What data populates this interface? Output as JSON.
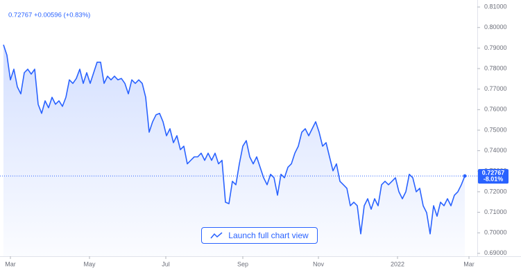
{
  "chart_data": {
    "type": "area",
    "header": "0.72767 +0.00596 (+0.83%)",
    "last_price_label": "0.72767",
    "change_label": "-8.01%",
    "button_label": "Launch full chart view",
    "color": "#2962ff",
    "values": [
      0.7916,
      0.7865,
      0.7745,
      0.7797,
      0.7711,
      0.7677,
      0.778,
      0.7797,
      0.7773,
      0.7797,
      0.7626,
      0.7582,
      0.7643,
      0.7609,
      0.766,
      0.7626,
      0.7643,
      0.7616,
      0.766,
      0.7745,
      0.7728,
      0.7752,
      0.7797,
      0.7728,
      0.778,
      0.7728,
      0.778,
      0.7831,
      0.7831,
      0.7728,
      0.7763,
      0.7745,
      0.7763,
      0.7745,
      0.7752,
      0.7728,
      0.7677,
      0.7745,
      0.7728,
      0.7745,
      0.7728,
      0.766,
      0.749,
      0.7541,
      0.7575,
      0.7582,
      0.7541,
      0.7473,
      0.7507,
      0.7439,
      0.7473,
      0.7405,
      0.7422,
      0.7336,
      0.7353,
      0.737,
      0.737,
      0.7388,
      0.7353,
      0.7388,
      0.7353,
      0.7388,
      0.7336,
      0.7353,
      0.7149,
      0.7142,
      0.7251,
      0.7234,
      0.7336,
      0.7422,
      0.7449,
      0.737,
      0.7336,
      0.737,
      0.7319,
      0.7268,
      0.7234,
      0.7285,
      0.7268,
      0.7183,
      0.7285,
      0.7268,
      0.7319,
      0.7336,
      0.7388,
      0.7422,
      0.749,
      0.7507,
      0.7473,
      0.7507,
      0.7541,
      0.749,
      0.7422,
      0.7439,
      0.737,
      0.7302,
      0.7336,
      0.7251,
      0.7234,
      0.7217,
      0.7132,
      0.7149,
      0.7132,
      0.6995,
      0.7132,
      0.7166,
      0.7115,
      0.7166,
      0.7132,
      0.7234,
      0.7251,
      0.7234,
      0.7251,
      0.7268,
      0.72,
      0.7166,
      0.72,
      0.7285,
      0.7268,
      0.72,
      0.7217,
      0.7132,
      0.7098,
      0.6995,
      0.7132,
      0.7081,
      0.7149,
      0.7132,
      0.7166,
      0.7132,
      0.7183,
      0.72,
      0.7234,
      0.72767
    ],
    "xlim": [
      -1,
      136.6
    ],
    "xticks": [
      {
        "value": 2,
        "label": "Mar"
      },
      {
        "value": 24.8,
        "label": "May"
      },
      {
        "value": 46.8,
        "label": "Jul"
      },
      {
        "value": 69,
        "label": "Sep"
      },
      {
        "value": 90.8,
        "label": "Nov"
      },
      {
        "value": 113.6,
        "label": "2022"
      },
      {
        "value": 134.2,
        "label": "Mar"
      }
    ],
    "ylim": [
      0.6886,
      0.8134
    ],
    "yticks": [
      {
        "value": 0.69,
        "label": "0.69000"
      },
      {
        "value": 0.7,
        "label": "0.70000"
      },
      {
        "value": 0.71,
        "label": "0.71000"
      },
      {
        "value": 0.72,
        "label": "0.72000"
      },
      {
        "value": 0.73,
        "label": "0.73000"
      },
      {
        "value": 0.74,
        "label": "0.74000"
      },
      {
        "value": 0.75,
        "label": "0.75000"
      },
      {
        "value": 0.76,
        "label": "0.76000"
      },
      {
        "value": 0.77,
        "label": "0.77000"
      },
      {
        "value": 0.78,
        "label": "0.78000"
      },
      {
        "value": 0.79,
        "label": "0.79000"
      },
      {
        "value": 0.8,
        "label": "0.80000"
      },
      {
        "value": 0.81,
        "label": "0.81000"
      }
    ]
  }
}
